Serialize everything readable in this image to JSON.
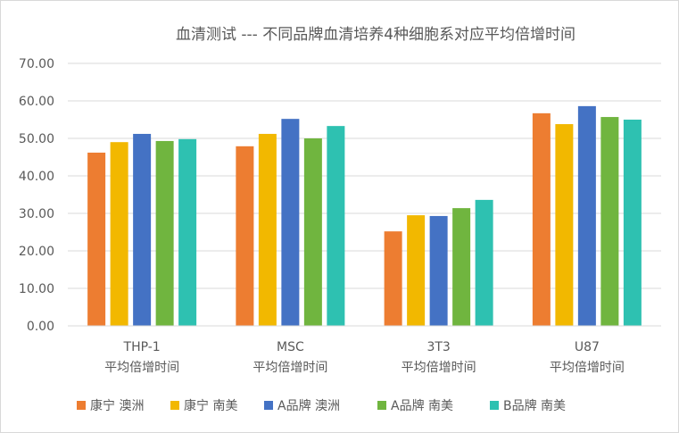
{
  "chart_data": {
    "type": "bar",
    "title": "血清测试 --- 不同品牌血清培养4种细胞系对应平均倍增时间",
    "categories": [
      [
        "THP-1",
        "平均倍增时间"
      ],
      [
        "MSC",
        "平均倍增时间"
      ],
      [
        "3T3",
        "平均倍增时间"
      ],
      [
        "U87",
        "平均倍增时间"
      ]
    ],
    "series": [
      {
        "name": "康宁 澳洲",
        "color": "#ED7D31",
        "values": [
          46.2,
          47.9,
          25.2,
          56.7
        ]
      },
      {
        "name": "康宁 南美",
        "color": "#F2B800",
        "values": [
          49.0,
          51.2,
          29.5,
          53.8
        ]
      },
      {
        "name": "A品牌 澳洲",
        "color": "#4472C4",
        "values": [
          51.2,
          55.2,
          29.3,
          58.6
        ]
      },
      {
        "name": "A品牌 南美",
        "color": "#70B53F",
        "values": [
          49.3,
          50.0,
          31.4,
          55.7
        ]
      },
      {
        "name": "B品牌 南美",
        "color": "#2EC1B1",
        "values": [
          49.8,
          53.3,
          33.6,
          55.0
        ]
      }
    ],
    "yticks": [
      "0.00",
      "10.00",
      "20.00",
      "30.00",
      "40.00",
      "50.00",
      "60.00",
      "70.00"
    ],
    "ylim": [
      0,
      70
    ],
    "xlabel": "",
    "ylabel": "",
    "grid": true,
    "legend": "bottom"
  }
}
